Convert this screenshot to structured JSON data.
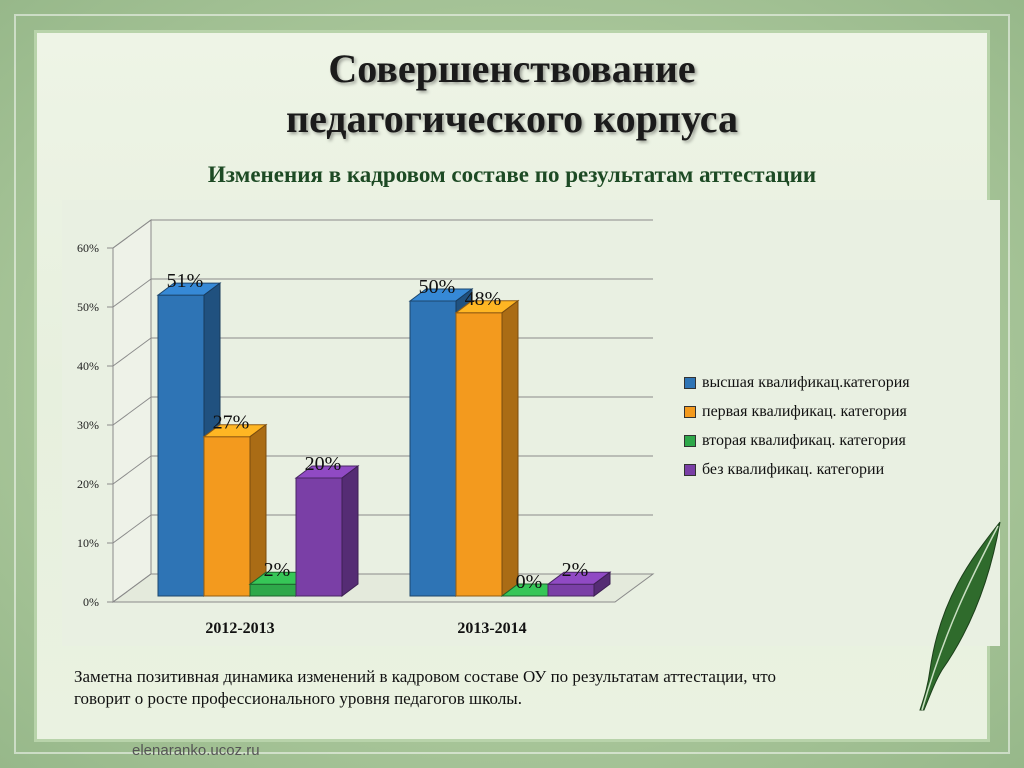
{
  "title_line1": "Совершенствование",
  "title_line2": "педагогического корпуса",
  "chart_data": {
    "type": "bar",
    "title": "Изменения в кадровом составе по результатам аттестации",
    "categories": [
      "2012-2013",
      "2013-2014"
    ],
    "series": [
      {
        "name": "высшая квалификац.категория",
        "values": [
          51,
          50
        ],
        "labels": [
          "51%",
          "50%"
        ],
        "color": "#2e74b5"
      },
      {
        "name": "первая квалификац. категория",
        "values": [
          27,
          48
        ],
        "labels": [
          "27%",
          "48%"
        ],
        "color": "#f39a1e"
      },
      {
        "name": "вторая квалификац. категория",
        "values": [
          2,
          0
        ],
        "labels": [
          "2%",
          "0%"
        ],
        "color": "#2ea84a"
      },
      {
        "name": "без квалификац. категории",
        "values": [
          20,
          2
        ],
        "labels": [
          "20%",
          "2%"
        ],
        "color": "#7a3fa6"
      }
    ],
    "ylim": [
      0,
      60
    ],
    "yticks": [
      "0%",
      "10%",
      "20%",
      "30%",
      "40%",
      "50%",
      "60%"
    ],
    "grid": true,
    "legend": "right"
  },
  "note": "Заметна позитивная динамика изменений в кадровом составе ОУ по результатам аттестации, что говорит о росте профессионального уровня педагогов школы.",
  "site": "elenaranko.ucoz.ru"
}
